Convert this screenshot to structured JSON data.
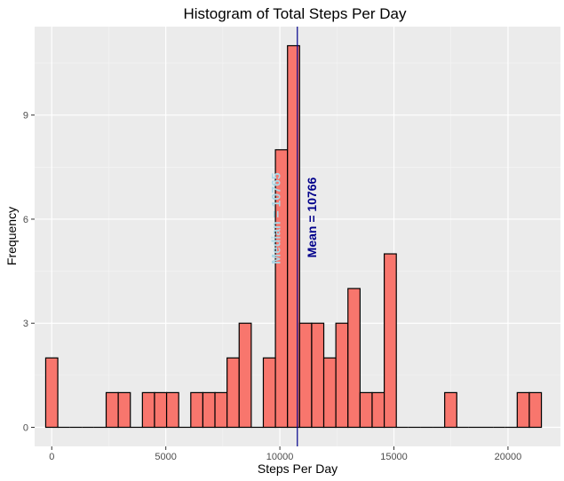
{
  "chart_data": {
    "type": "bar",
    "title": "Histogram of Total Steps Per Day",
    "xlabel": "Steps Per Day",
    "ylabel": "Frequency",
    "bin_width": 530,
    "x": [
      0,
      530,
      1060,
      1590,
      2120,
      2650,
      3180,
      3710,
      4240,
      4770,
      5300,
      5830,
      6360,
      6890,
      7420,
      7950,
      8480,
      9010,
      9540,
      10070,
      10600,
      11130,
      11660,
      12190,
      12720,
      13250,
      13780,
      14310,
      14840,
      15370,
      15900,
      16430,
      16960,
      17490,
      18020,
      18550,
      19080,
      19610,
      20140,
      20670,
      21200
    ],
    "values": [
      2,
      0,
      0,
      0,
      0,
      1,
      1,
      0,
      1,
      1,
      1,
      0,
      1,
      1,
      1,
      2,
      3,
      0,
      2,
      8,
      11,
      3,
      3,
      2,
      3,
      4,
      1,
      1,
      5,
      0,
      0,
      0,
      0,
      1,
      0,
      0,
      0,
      0,
      0,
      1,
      1
    ],
    "xlim": [
      -750,
      22300
    ],
    "ylim": [
      -0.55,
      11.55
    ],
    "x_ticks": [
      0,
      5000,
      10000,
      15000,
      20000
    ],
    "y_ticks": [
      0,
      3,
      6,
      9
    ],
    "fill_color": "#F8766D",
    "grid": true,
    "annotations": [
      {
        "label": "Median = 10765",
        "x": 10765,
        "color": "#ADD8E6",
        "line": false
      },
      {
        "label": "Mean = 10766",
        "x": 10766,
        "color": "#00008B",
        "line": true
      }
    ]
  }
}
